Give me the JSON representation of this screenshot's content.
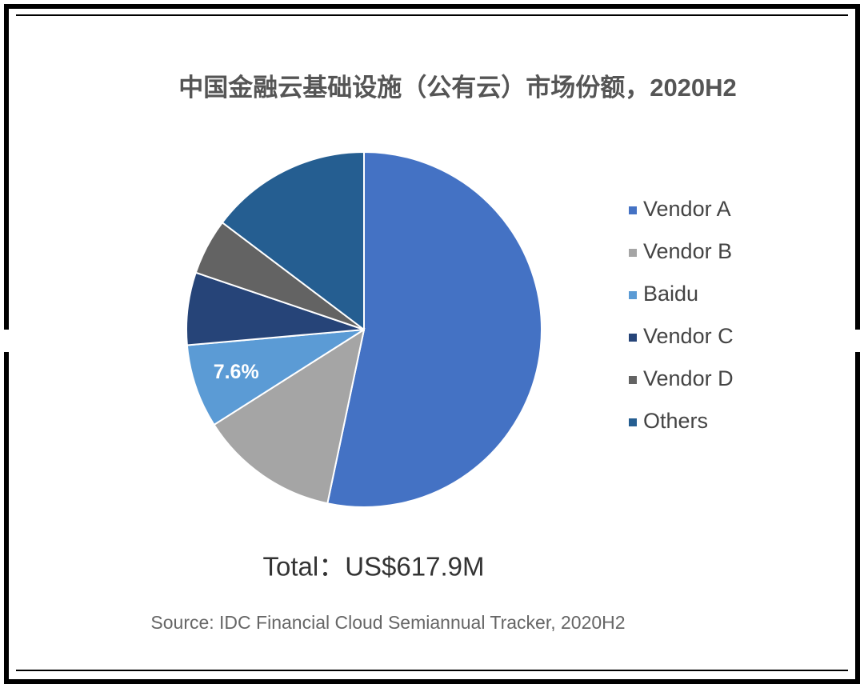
{
  "chart_data": {
    "type": "pie",
    "title": "中国金融云基础设施（公有云）市场份额，2020H2",
    "categories": [
      "Vendor A",
      "Vendor B",
      "Baidu",
      "Vendor C",
      "Vendor D",
      "Others"
    ],
    "values": [
      53.3,
      12.7,
      7.6,
      6.6,
      5.1,
      14.7
    ],
    "value_labels": [
      null,
      null,
      "7.6%",
      null,
      null,
      null
    ],
    "colors": [
      "#4472c4",
      "#a5a5a5",
      "#5b9bd5",
      "#264478",
      "#636363",
      "#255e91"
    ],
    "total": "Total：US$617.9M",
    "source": "Source: IDC Financial Cloud Semiannual Tracker, 2020H2",
    "legend": "right"
  }
}
